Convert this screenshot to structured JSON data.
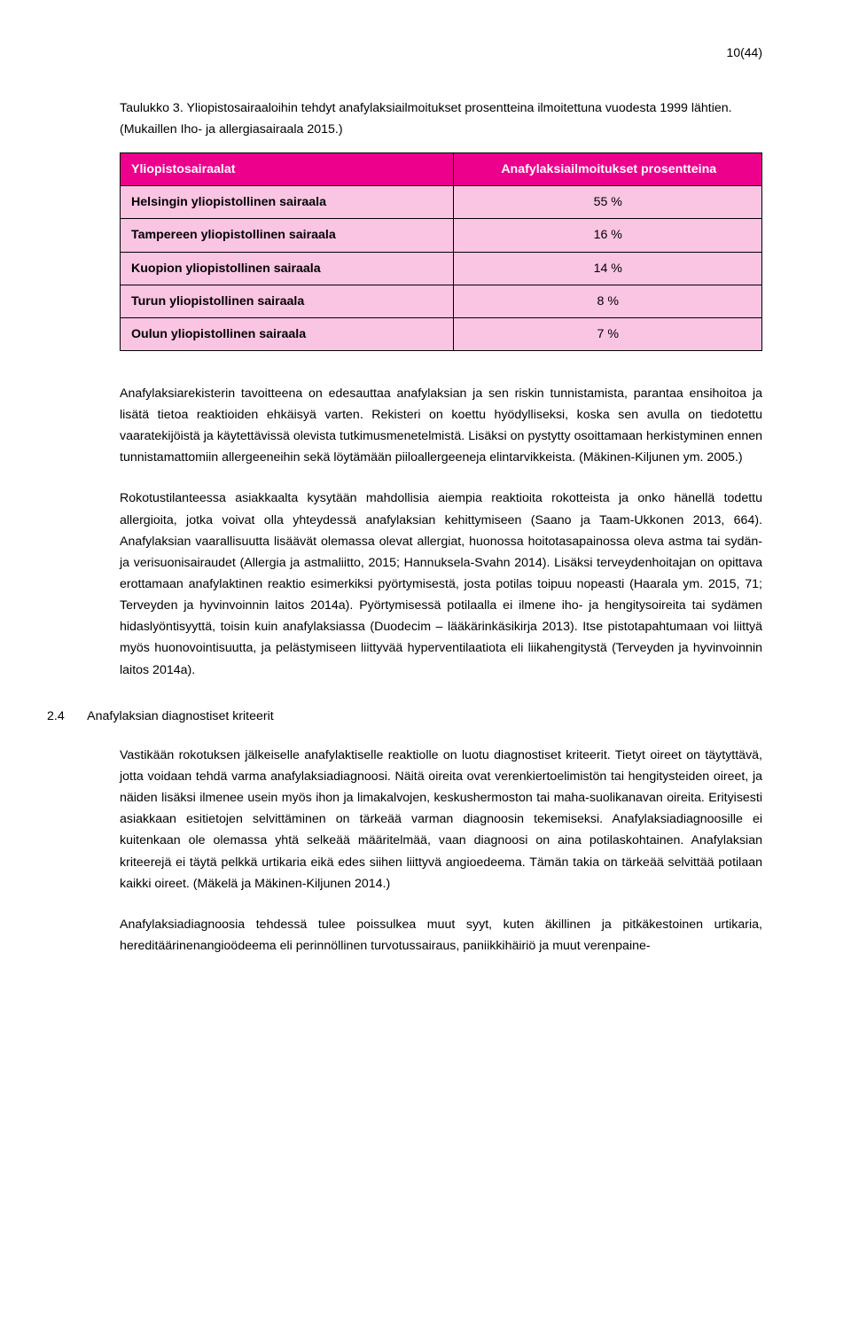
{
  "pageNumber": "10(44)",
  "caption": "Taulukko 3. Yliopistosairaaloihin tehdyt anafylaksiailmoitukset prosentteina ilmoitettuna vuodesta 1999 lähtien. (Mukaillen Iho- ja allergiasairaala 2015.)",
  "table": {
    "headerLeft": "Yliopistosairaalat",
    "headerRight": "Anafylaksiailmoitukset prosentteina",
    "rows": [
      {
        "label": "Helsingin yliopistollinen sairaala",
        "value": "55 %"
      },
      {
        "label": "Tampereen yliopistollinen sairaala",
        "value": "16 %"
      },
      {
        "label": "Kuopion yliopistollinen sairaala",
        "value": "14 %"
      },
      {
        "label": "Turun yliopistollinen sairaala",
        "value": "8 %"
      },
      {
        "label": "Oulun yliopistollinen sairaala",
        "value": "7 %"
      }
    ],
    "headerBg": "#ec008c",
    "headerColor": "#ffffff",
    "cellBg": "#fac4e3",
    "borderColor": "#000000"
  },
  "para1": "Anafylaksiarekisterin tavoitteena on edesauttaa anafylaksian ja sen riskin tunnistamista, parantaa ensihoitoa ja lisätä tietoa reaktioiden ehkäisyä varten. Rekisteri on koettu hyödylliseksi, koska sen avulla on tiedotettu vaaratekijöistä ja käytettävissä olevista tutkimusmenetelmistä. Lisäksi on pystytty osoittamaan herkistyminen ennen tunnistamattomiin allergeeneihin sekä löytämään piiloallergeeneja elintarvikkeista. (Mäkinen-Kiljunen ym. 2005.)",
  "para2": "Rokotustilanteessa asiakkaalta kysytään mahdollisia aiempia reaktioita rokotteista ja onko hänellä todettu allergioita, jotka voivat olla yhteydessä anafylaksian kehittymiseen (Saano ja Taam-Ukkonen 2013, 664). Anafylaksian vaarallisuutta lisäävät olemassa olevat allergiat, huonossa hoitotasapainossa oleva astma tai sydän- ja verisuonisairaudet (Allergia ja astmaliitto, 2015; Hannuksela-Svahn 2014). Lisäksi terveydenhoitajan on opittava erottamaan anafylaktinen reaktio esimerkiksi pyörtymisestä, josta potilas toipuu nopeasti (Haarala ym. 2015, 71; Terveyden ja hyvinvoinnin laitos 2014a). Pyörtymisessä potilaalla ei ilmene iho- ja hengitysoireita tai sydämen hidaslyöntisyyttä, toisin kuin anafylaksiassa (Duodecim – lääkärinkäsikirja 2013). Itse pistotapahtumaan voi liittyä myös huonovointisuutta, ja pelästymiseen liittyvää hyperventilaatiota eli liikahengitystä (Terveyden ja hyvinvoinnin laitos 2014a).",
  "section": {
    "num": "2.4",
    "title": "Anafylaksian diagnostiset kriteerit"
  },
  "para3": "Vastikään rokotuksen jälkeiselle anafylaktiselle reaktiolle on luotu diagnostiset kriteerit. Tietyt oireet on täytyttävä, jotta voidaan tehdä varma anafylaksiadiagnoosi. Näitä oireita ovat verenkiertoelimistön tai hengitysteiden oireet, ja näiden lisäksi ilmenee usein myös ihon ja limakalvojen, keskushermoston tai maha-suolikanavan oireita. Erityisesti asiakkaan esitietojen selvittäminen on tärkeää varman diagnoosin tekemiseksi. Anafylaksiadiagnoosille ei kuitenkaan ole olemassa yhtä selkeää määritelmää, vaan diagnoosi on aina potilaskohtainen. Anafylaksian kriteerejä ei täytä pelkkä urtikaria eikä edes siihen liittyvä angioedeema. Tämän takia on tärkeää selvittää potilaan kaikki oireet. (Mäkelä ja Mäkinen-Kiljunen 2014.)",
  "para4": "Anafylaksiadiagnoosia tehdessä tulee poissulkea muut syyt, kuten äkillinen ja pitkäkestoinen urtikaria, hereditäärinenangioödeema eli perinnöllinen turvotussairaus, paniikkihäiriö ja muut verenpaine-"
}
